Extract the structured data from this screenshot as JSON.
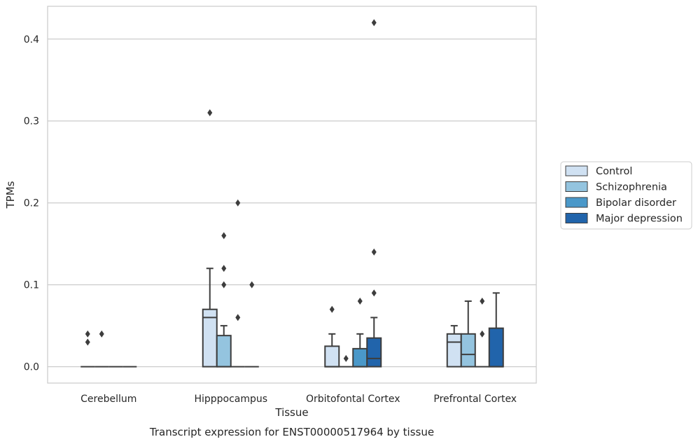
{
  "chart_data": {
    "type": "box",
    "title": "Transcript expression for ENST00000517964 by tissue",
    "xlabel": "Tissue",
    "ylabel": "TPMs",
    "ylim": [
      -0.02,
      0.44
    ],
    "yticks": [
      0.0,
      0.1,
      0.2,
      0.3,
      0.4
    ],
    "ytick_labels": [
      "0.0",
      "0.1",
      "0.2",
      "0.3",
      "0.4"
    ],
    "categories": [
      "Cerebellum",
      "Hipppocampus",
      "Orbitofontal Cortex",
      "Prefrontal Cortex"
    ],
    "grid": "horizontal",
    "legend_position": "right",
    "series": [
      {
        "name": "Control",
        "color": "#d0e1f2",
        "boxes": [
          {
            "q1": 0.0,
            "median": 0.0,
            "q3": 0.0,
            "whisker_low": 0.0,
            "whisker_high": 0.0,
            "outliers": [
              0.03,
              0.04
            ]
          },
          {
            "q1": 0.0,
            "median": 0.06,
            "q3": 0.07,
            "whisker_low": 0.0,
            "whisker_high": 0.12,
            "outliers": [
              0.31
            ]
          },
          {
            "q1": 0.0,
            "median": 0.0,
            "q3": 0.025,
            "whisker_low": 0.0,
            "whisker_high": 0.04,
            "outliers": [
              0.07
            ]
          },
          {
            "q1": 0.0,
            "median": 0.03,
            "q3": 0.04,
            "whisker_low": 0.0,
            "whisker_high": 0.05,
            "outliers": []
          }
        ]
      },
      {
        "name": "Schizophrenia",
        "color": "#94c4df",
        "boxes": [
          {
            "q1": 0.0,
            "median": 0.0,
            "q3": 0.0,
            "whisker_low": 0.0,
            "whisker_high": 0.0,
            "outliers": [
              0.04
            ]
          },
          {
            "q1": 0.0,
            "median": 0.0,
            "q3": 0.038,
            "whisker_low": 0.0,
            "whisker_high": 0.05,
            "outliers": [
              0.1,
              0.12,
              0.16
            ]
          },
          {
            "q1": 0.0,
            "median": 0.0,
            "q3": 0.0,
            "whisker_low": 0.0,
            "whisker_high": 0.0,
            "outliers": [
              0.01
            ]
          },
          {
            "q1": 0.0,
            "median": 0.015,
            "q3": 0.04,
            "whisker_low": 0.0,
            "whisker_high": 0.08,
            "outliers": []
          }
        ]
      },
      {
        "name": "Bipolar disorder",
        "color": "#4a98c9",
        "boxes": [
          {
            "q1": 0.0,
            "median": 0.0,
            "q3": 0.0,
            "whisker_low": 0.0,
            "whisker_high": 0.0,
            "outliers": []
          },
          {
            "q1": 0.0,
            "median": 0.0,
            "q3": 0.0,
            "whisker_low": 0.0,
            "whisker_high": 0.0,
            "outliers": [
              0.06,
              0.2
            ]
          },
          {
            "q1": 0.0,
            "median": 0.0,
            "q3": 0.022,
            "whisker_low": 0.0,
            "whisker_high": 0.04,
            "outliers": [
              0.08
            ]
          },
          {
            "q1": 0.0,
            "median": 0.0,
            "q3": 0.0,
            "whisker_low": 0.0,
            "whisker_high": 0.0,
            "outliers": [
              0.04,
              0.08
            ]
          }
        ]
      },
      {
        "name": "Major depression",
        "color": "#2164ab",
        "boxes": [
          {
            "q1": 0.0,
            "median": 0.0,
            "q3": 0.0,
            "whisker_low": 0.0,
            "whisker_high": 0.0,
            "outliers": []
          },
          {
            "q1": 0.0,
            "median": 0.0,
            "q3": 0.0,
            "whisker_low": 0.0,
            "whisker_high": 0.0,
            "outliers": [
              0.1
            ]
          },
          {
            "q1": 0.0,
            "median": 0.01,
            "q3": 0.035,
            "whisker_low": 0.0,
            "whisker_high": 0.06,
            "outliers": [
              0.09,
              0.14,
              0.42
            ]
          },
          {
            "q1": 0.0,
            "median": 0.0,
            "q3": 0.047,
            "whisker_low": 0.0,
            "whisker_high": 0.09,
            "outliers": []
          }
        ]
      }
    ]
  }
}
